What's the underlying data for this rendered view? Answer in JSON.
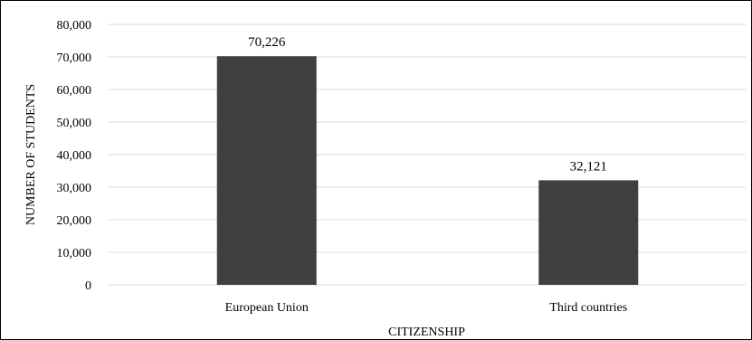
{
  "chart_data": {
    "type": "bar",
    "title": "",
    "xlabel": "CITIZENSHIP",
    "ylabel": "NUMBER OF STUDENTS",
    "categories": [
      "European Union",
      "Third countries"
    ],
    "values": [
      70226,
      32121
    ],
    "data_labels": [
      "70,226",
      "32,121"
    ],
    "ylim": [
      0,
      80000
    ],
    "yticks": [
      0,
      10000,
      20000,
      30000,
      40000,
      50000,
      60000,
      70000,
      80000
    ],
    "ytick_labels": [
      "0",
      "10,000",
      "20,000",
      "30,000",
      "40,000",
      "50,000",
      "60,000",
      "70,000",
      "80,000"
    ],
    "grid": true,
    "legend": "none",
    "colors": {
      "bar": "#404040",
      "grid": "#d9d9d9",
      "text": "#000000"
    }
  }
}
